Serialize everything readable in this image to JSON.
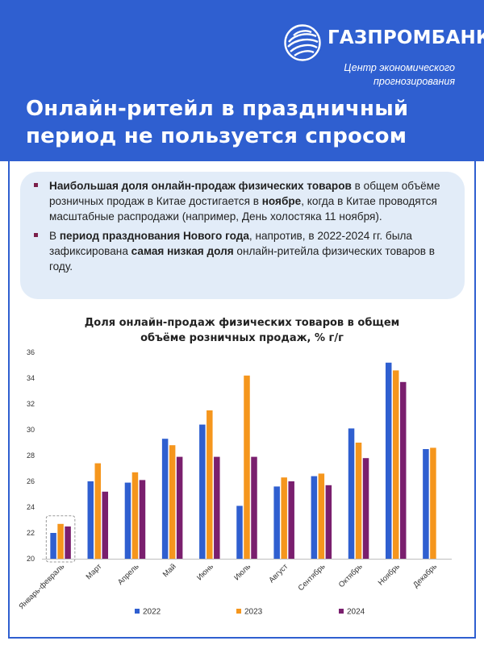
{
  "brand": {
    "name": "ГАЗПРОМБАНК",
    "subtitle_line1": "Центр экономического",
    "subtitle_line2": "прогнозирования",
    "color": "#2f5fd0",
    "logo_icon": "globe-logo-icon"
  },
  "title": {
    "line1": "Онлайн-ритейл в праздничный",
    "line2": "период не пользуется спросом"
  },
  "notes": [
    {
      "b1": "Наибольшая доля онлайн-продаж физических товаров",
      "t1": " в общем объёме розничных продаж в Китае достигается в ",
      "b2": "ноябре",
      "t2": ", когда в Китае проводятся масштабные распродажи (например, День холостяка 11 ноября)."
    },
    {
      "t0": "В ",
      "b1": "период празднования Нового года",
      "t1": ", напротив, в 2022-2024 гг. была зафиксирована ",
      "b2": "самая низкая доля",
      "t2": " онлайн-ритейла физических товаров в году."
    }
  ],
  "chart_data": {
    "type": "bar",
    "title_line1": "Доля онлайн-продаж физических  товаров в общем",
    "title_line2": "объёме розничных продаж, % г/г",
    "categories": [
      "Январь-февраль",
      "Март",
      "Апрель",
      "Май",
      "Июнь",
      "Июль",
      "Август",
      "Сентябрь",
      "Октябрь",
      "Ноябрь",
      "Декабрь"
    ],
    "series": [
      {
        "name": "2022",
        "color": "#2f5fd0",
        "values": [
          22.0,
          26.0,
          25.9,
          29.3,
          30.4,
          24.1,
          25.6,
          26.4,
          30.1,
          35.2,
          28.5
        ]
      },
      {
        "name": "2023",
        "color": "#f5961d",
        "values": [
          22.7,
          27.4,
          26.7,
          28.8,
          31.5,
          34.2,
          26.3,
          26.6,
          29.0,
          34.6,
          28.6
        ]
      },
      {
        "name": "2024",
        "color": "#7a1f6e",
        "values": [
          22.5,
          25.2,
          26.1,
          27.9,
          27.9,
          27.9,
          26.0,
          25.7,
          27.8,
          33.7,
          null
        ]
      }
    ],
    "ylim": [
      20,
      36
    ],
    "yticks": [
      20,
      22,
      24,
      26,
      28,
      30,
      32,
      34,
      36
    ],
    "grid": false,
    "legend_position": "bottom",
    "highlight_category": "Январь-февраль"
  }
}
